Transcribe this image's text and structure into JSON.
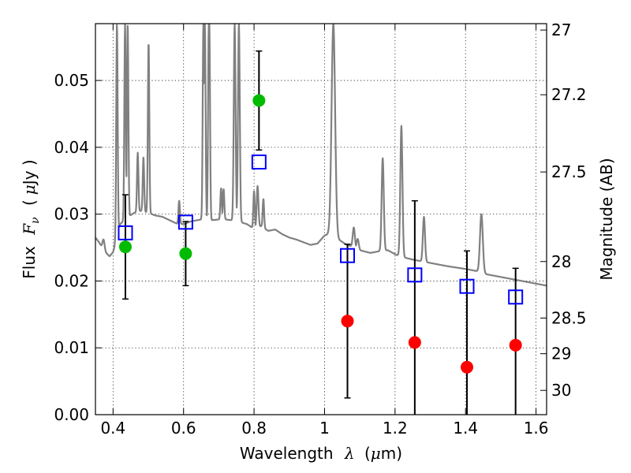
{
  "chart_data": {
    "type": "scatter",
    "xlabel_prefix": "Wavelength",
    "xlabel_symbol": "λ",
    "xlabel_unit_open": "(",
    "xlabel_unit_mu": "μ",
    "xlabel_unit_rest": "m)",
    "ylabel_prefix": "Flux",
    "ylabel_symbol": "F",
    "ylabel_subscript": "ν",
    "ylabel_unit_open": "(",
    "ylabel_unit_mu": "μ",
    "ylabel_unit_rest": "Jy )",
    "y2label": "Magnitude (AB)",
    "xlim": [
      0.35,
      1.63
    ],
    "ylim": [
      0.0,
      0.0585
    ],
    "grid": true,
    "x_ticks": [
      0.4,
      0.6,
      0.8,
      1.0,
      1.2,
      1.4,
      1.6
    ],
    "x_tick_labels": [
      "0.4",
      "0.6",
      "0.8",
      "1",
      "1.2",
      "1.4",
      "1.6"
    ],
    "y_ticks": [
      0.0,
      0.01,
      0.02,
      0.03,
      0.04,
      0.05
    ],
    "y_tick_labels": [
      "0.00",
      "0.01",
      "0.02",
      "0.03",
      "0.04",
      "0.05"
    ],
    "y2_ticks": [
      27,
      27.2,
      27.5,
      28,
      28.5,
      29,
      30
    ],
    "y2_tick_labels": [
      "27",
      "27.2",
      "27.5",
      "28",
      "28.5",
      "29",
      "30"
    ],
    "colors": {
      "detected": "#00bb00",
      "upper_limit": "#ff0000",
      "model": "#0000ff",
      "spectrum": "#808080",
      "errorbar": "#000000"
    },
    "series": [
      {
        "marker": "circle",
        "color": "#00bb00",
        "x": [
          0.435,
          0.606,
          0.814
        ],
        "y": [
          0.0251,
          0.0241,
          0.047
        ],
        "yerr": [
          0.0078,
          0.0048,
          0.0074
        ]
      },
      {
        "marker": "circle",
        "color": "#ff0000",
        "x": [
          1.065,
          1.256,
          1.404,
          1.542
        ],
        "y": [
          0.014,
          0.0108,
          0.0071,
          0.0104
        ]
      },
      {
        "marker": "open-square",
        "color": "#0000ff",
        "x": [
          0.435,
          0.606,
          0.814,
          1.065,
          1.256,
          1.404,
          1.542
        ],
        "y": [
          0.0272,
          0.0288,
          0.0378,
          0.0238,
          0.0209,
          0.0192,
          0.0176
        ]
      }
    ],
    "errorbars": [
      {
        "x": 0.435,
        "y_low": 0.0173,
        "y_high": 0.0329
      },
      {
        "x": 0.606,
        "y_low": 0.0193,
        "y_high": 0.0289
      },
      {
        "x": 0.814,
        "y_low": 0.0396,
        "y_high": 0.0544
      },
      {
        "x": 1.065,
        "y_low": 0.0025,
        "y_high": 0.0255
      },
      {
        "x": 1.256,
        "y_low": 0.0,
        "y_high": 0.032
      },
      {
        "x": 1.404,
        "y_low": 0.0,
        "y_high": 0.0245
      },
      {
        "x": 1.542,
        "y_low": 0.0,
        "y_high": 0.0219
      }
    ],
    "spectrum_continuum": [
      [
        0.35,
        0.0265
      ],
      [
        0.36,
        0.0258
      ],
      [
        0.37,
        0.0249
      ],
      [
        0.38,
        0.0242
      ],
      [
        0.39,
        0.0237
      ],
      [
        0.4,
        0.0243
      ],
      [
        0.42,
        0.0285
      ],
      [
        0.44,
        0.0295
      ],
      [
        0.46,
        0.0302
      ],
      [
        0.48,
        0.0305
      ],
      [
        0.5,
        0.0302
      ],
      [
        0.52,
        0.0298
      ],
      [
        0.54,
        0.0296
      ],
      [
        0.56,
        0.0291
      ],
      [
        0.58,
        0.0286
      ],
      [
        0.6,
        0.0285
      ],
      [
        0.62,
        0.0289
      ],
      [
        0.65,
        0.0292
      ],
      [
        0.68,
        0.0291
      ],
      [
        0.7,
        0.0292
      ],
      [
        0.72,
        0.0292
      ],
      [
        0.75,
        0.029
      ],
      [
        0.78,
        0.0285
      ],
      [
        0.8,
        0.0278
      ],
      [
        0.82,
        0.0282
      ],
      [
        0.84,
        0.0275
      ],
      [
        0.86,
        0.0277
      ],
      [
        0.88,
        0.027
      ],
      [
        0.9,
        0.0265
      ],
      [
        0.92,
        0.0262
      ],
      [
        0.94,
        0.0258
      ],
      [
        0.96,
        0.0254
      ],
      [
        0.98,
        0.0256
      ],
      [
        1.0,
        0.0268
      ],
      [
        1.02,
        0.0272
      ],
      [
        1.04,
        0.0262
      ],
      [
        1.06,
        0.0255
      ],
      [
        1.08,
        0.0251
      ],
      [
        1.1,
        0.0246
      ],
      [
        1.13,
        0.0242
      ],
      [
        1.16,
        0.0245
      ],
      [
        1.18,
        0.0246
      ],
      [
        1.2,
        0.024
      ],
      [
        1.22,
        0.0236
      ],
      [
        1.25,
        0.0232
      ],
      [
        1.3,
        0.0227
      ],
      [
        1.35,
        0.0222
      ],
      [
        1.4,
        0.0218
      ],
      [
        1.43,
        0.0215
      ],
      [
        1.46,
        0.021
      ],
      [
        1.5,
        0.0206
      ],
      [
        1.55,
        0.0201
      ],
      [
        1.6,
        0.0196
      ],
      [
        1.63,
        0.0193
      ]
    ],
    "spectrum_lines": [
      {
        "x": 0.373,
        "peak": 0.0262,
        "w": 0.003
      },
      {
        "x": 0.411,
        "peak": 0.0585,
        "w": 0.002
      },
      {
        "x": 0.434,
        "peak": 0.0585,
        "w": 0.002
      },
      {
        "x": 0.4415,
        "peak": 0.0585,
        "w": 0.002
      },
      {
        "x": 0.47,
        "peak": 0.0392,
        "w": 0.002
      },
      {
        "x": 0.4862,
        "peak": 0.0385,
        "w": 0.002
      },
      {
        "x": 0.5008,
        "peak": 0.0558,
        "w": 0.002
      },
      {
        "x": 0.5876,
        "peak": 0.032,
        "w": 0.002
      },
      {
        "x": 0.6563,
        "peak": 0.0585,
        "w": 0.002
      },
      {
        "x": 0.6605,
        "peak": 0.0585,
        "w": 0.002
      },
      {
        "x": 0.6716,
        "peak": 0.0585,
        "w": 0.002
      },
      {
        "x": 0.6731,
        "peak": 0.0585,
        "w": 0.002
      },
      {
        "x": 0.7065,
        "peak": 0.0339,
        "w": 0.002
      },
      {
        "x": 0.7136,
        "peak": 0.0338,
        "w": 0.002
      },
      {
        "x": 0.745,
        "peak": 0.0585,
        "w": 0.0025
      },
      {
        "x": 0.757,
        "peak": 0.0585,
        "w": 0.0025
      },
      {
        "x": 0.8,
        "peak": 0.0335,
        "w": 0.002
      },
      {
        "x": 0.81,
        "peak": 0.0342,
        "w": 0.0025
      },
      {
        "x": 0.8265,
        "peak": 0.0323,
        "w": 0.002
      },
      {
        "x": 1.025,
        "peak": 0.0585,
        "w": 0.005
      },
      {
        "x": 1.083,
        "peak": 0.028,
        "w": 0.003
      },
      {
        "x": 1.094,
        "peak": 0.0263,
        "w": 0.003
      },
      {
        "x": 1.165,
        "peak": 0.0384,
        "w": 0.003
      },
      {
        "x": 1.218,
        "peak": 0.0432,
        "w": 0.003
      },
      {
        "x": 1.282,
        "peak": 0.0296,
        "w": 0.003
      },
      {
        "x": 1.445,
        "peak": 0.03,
        "w": 0.004
      }
    ]
  }
}
